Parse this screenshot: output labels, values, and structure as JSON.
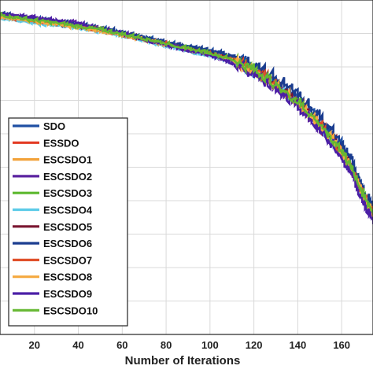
{
  "chart_data": {
    "type": "line",
    "title": "",
    "xlabel": "Number of Iterations",
    "ylabel": "",
    "xlim": [
      0,
      175
    ],
    "ylim": [
      0,
      1
    ],
    "xticks": [
      20,
      40,
      60,
      80,
      100,
      120,
      140,
      160
    ],
    "grid": true,
    "legend_position": "lower-left",
    "series": [
      {
        "name": "SDO",
        "color": "#1f4fa3",
        "points": [
          [
            0,
            0.965
          ],
          [
            10,
            0.952
          ],
          [
            20,
            0.943
          ],
          [
            30,
            0.935
          ],
          [
            40,
            0.926
          ],
          [
            50,
            0.915
          ],
          [
            60,
            0.902
          ],
          [
            70,
            0.888
          ],
          [
            80,
            0.872
          ],
          [
            90,
            0.86
          ],
          [
            100,
            0.848
          ],
          [
            110,
            0.83
          ],
          [
            120,
            0.8
          ],
          [
            130,
            0.76
          ],
          [
            140,
            0.705
          ],
          [
            150,
            0.64
          ],
          [
            160,
            0.56
          ],
          [
            165,
            0.5
          ],
          [
            170,
            0.42
          ],
          [
            175,
            0.37
          ]
        ]
      },
      {
        "name": "ESSDO",
        "color": "#e33b24",
        "points": [
          [
            0,
            0.958
          ],
          [
            10,
            0.95
          ],
          [
            20,
            0.94
          ],
          [
            30,
            0.932
          ],
          [
            40,
            0.922
          ],
          [
            50,
            0.912
          ],
          [
            60,
            0.898
          ],
          [
            70,
            0.884
          ],
          [
            80,
            0.87
          ],
          [
            90,
            0.855
          ],
          [
            100,
            0.842
          ],
          [
            110,
            0.822
          ],
          [
            120,
            0.79
          ],
          [
            130,
            0.748
          ],
          [
            140,
            0.692
          ],
          [
            150,
            0.628
          ],
          [
            160,
            0.548
          ],
          [
            165,
            0.49
          ],
          [
            170,
            0.412
          ],
          [
            175,
            0.36
          ]
        ]
      },
      {
        "name": "ESCSDO1",
        "color": "#f2a23a",
        "points": [
          [
            0,
            0.955
          ],
          [
            10,
            0.945
          ],
          [
            20,
            0.936
          ],
          [
            30,
            0.928
          ],
          [
            40,
            0.918
          ],
          [
            50,
            0.908
          ],
          [
            60,
            0.895
          ],
          [
            70,
            0.88
          ],
          [
            80,
            0.866
          ],
          [
            90,
            0.852
          ],
          [
            100,
            0.838
          ],
          [
            110,
            0.818
          ],
          [
            120,
            0.786
          ],
          [
            130,
            0.742
          ],
          [
            140,
            0.688
          ],
          [
            150,
            0.622
          ],
          [
            160,
            0.54
          ],
          [
            165,
            0.482
          ],
          [
            170,
            0.405
          ],
          [
            175,
            0.35
          ]
        ]
      },
      {
        "name": "ESCSDO2",
        "color": "#5b23a0",
        "points": [
          [
            0,
            0.962
          ],
          [
            10,
            0.956
          ],
          [
            20,
            0.947
          ],
          [
            30,
            0.939
          ],
          [
            40,
            0.93
          ],
          [
            50,
            0.914
          ],
          [
            60,
            0.9
          ],
          [
            70,
            0.882
          ],
          [
            80,
            0.864
          ],
          [
            90,
            0.85
          ],
          [
            100,
            0.835
          ],
          [
            110,
            0.812
          ],
          [
            120,
            0.778
          ],
          [
            130,
            0.735
          ],
          [
            140,
            0.68
          ],
          [
            150,
            0.612
          ],
          [
            160,
            0.53
          ],
          [
            165,
            0.47
          ],
          [
            170,
            0.395
          ],
          [
            175,
            0.33
          ]
        ]
      },
      {
        "name": "ESCSDO3",
        "color": "#5cb82e",
        "points": [
          [
            0,
            0.96
          ],
          [
            10,
            0.948
          ],
          [
            20,
            0.938
          ],
          [
            30,
            0.93
          ],
          [
            40,
            0.92
          ],
          [
            50,
            0.91
          ],
          [
            60,
            0.896
          ],
          [
            70,
            0.883
          ],
          [
            80,
            0.868
          ],
          [
            90,
            0.853
          ],
          [
            100,
            0.84
          ],
          [
            110,
            0.82
          ],
          [
            120,
            0.788
          ],
          [
            130,
            0.745
          ],
          [
            140,
            0.69
          ],
          [
            150,
            0.626
          ],
          [
            160,
            0.545
          ],
          [
            165,
            0.488
          ],
          [
            170,
            0.41
          ],
          [
            175,
            0.355
          ]
        ]
      },
      {
        "name": "ESCSDO4",
        "color": "#5ccbe8",
        "points": [
          [
            0,
            0.95
          ],
          [
            10,
            0.94
          ],
          [
            20,
            0.93
          ],
          [
            30,
            0.924
          ],
          [
            40,
            0.915
          ],
          [
            50,
            0.905
          ],
          [
            60,
            0.892
          ],
          [
            70,
            0.878
          ],
          [
            80,
            0.862
          ],
          [
            90,
            0.846
          ],
          [
            100,
            0.832
          ],
          [
            110,
            0.814
          ],
          [
            120,
            0.782
          ],
          [
            130,
            0.738
          ],
          [
            140,
            0.684
          ],
          [
            150,
            0.618
          ],
          [
            160,
            0.536
          ],
          [
            165,
            0.478
          ],
          [
            170,
            0.4
          ],
          [
            175,
            0.345
          ]
        ]
      },
      {
        "name": "ESCSDO5",
        "color": "#7a1630",
        "points": [
          [
            0,
            0.957
          ],
          [
            10,
            0.947
          ],
          [
            20,
            0.939
          ],
          [
            30,
            0.931
          ],
          [
            40,
            0.921
          ],
          [
            50,
            0.911
          ],
          [
            60,
            0.897
          ],
          [
            70,
            0.884
          ],
          [
            80,
            0.869
          ],
          [
            90,
            0.854
          ],
          [
            100,
            0.841
          ],
          [
            110,
            0.821
          ],
          [
            120,
            0.789
          ],
          [
            130,
            0.746
          ],
          [
            140,
            0.691
          ],
          [
            150,
            0.627
          ],
          [
            160,
            0.546
          ],
          [
            165,
            0.489
          ],
          [
            170,
            0.411
          ],
          [
            175,
            0.356
          ]
        ]
      },
      {
        "name": "ESCSDO6",
        "color": "#1a3c8f",
        "points": [
          [
            0,
            0.963
          ],
          [
            10,
            0.953
          ],
          [
            20,
            0.944
          ],
          [
            30,
            0.936
          ],
          [
            40,
            0.927
          ],
          [
            50,
            0.916
          ],
          [
            60,
            0.903
          ],
          [
            70,
            0.889
          ],
          [
            80,
            0.873
          ],
          [
            90,
            0.861
          ],
          [
            100,
            0.849
          ],
          [
            110,
            0.832
          ],
          [
            120,
            0.803
          ],
          [
            130,
            0.765
          ],
          [
            140,
            0.712
          ],
          [
            150,
            0.648
          ],
          [
            160,
            0.568
          ],
          [
            165,
            0.508
          ],
          [
            170,
            0.428
          ],
          [
            175,
            0.378
          ]
        ]
      },
      {
        "name": "ESCSDO7",
        "color": "#e0502a",
        "points": [
          [
            0,
            0.956
          ],
          [
            10,
            0.946
          ],
          [
            20,
            0.937
          ],
          [
            30,
            0.929
          ],
          [
            40,
            0.919
          ],
          [
            50,
            0.909
          ],
          [
            60,
            0.894
          ],
          [
            70,
            0.881
          ],
          [
            80,
            0.867
          ],
          [
            90,
            0.851
          ],
          [
            100,
            0.839
          ],
          [
            110,
            0.817
          ],
          [
            120,
            0.785
          ],
          [
            130,
            0.741
          ],
          [
            140,
            0.687
          ],
          [
            150,
            0.621
          ],
          [
            160,
            0.539
          ],
          [
            165,
            0.481
          ],
          [
            170,
            0.404
          ],
          [
            175,
            0.349
          ]
        ]
      },
      {
        "name": "ESCSDO8",
        "color": "#f5a93f",
        "points": [
          [
            0,
            0.954
          ],
          [
            10,
            0.944
          ],
          [
            20,
            0.935
          ],
          [
            30,
            0.927
          ],
          [
            40,
            0.917
          ],
          [
            50,
            0.907
          ],
          [
            60,
            0.893
          ],
          [
            70,
            0.879
          ],
          [
            80,
            0.865
          ],
          [
            90,
            0.85
          ],
          [
            100,
            0.837
          ],
          [
            110,
            0.816
          ],
          [
            120,
            0.784
          ],
          [
            130,
            0.74
          ],
          [
            140,
            0.686
          ],
          [
            150,
            0.62
          ],
          [
            160,
            0.538
          ],
          [
            165,
            0.48
          ],
          [
            170,
            0.402
          ],
          [
            175,
            0.348
          ]
        ]
      },
      {
        "name": "ESCSDO9",
        "color": "#4b1fa6",
        "points": [
          [
            0,
            0.961
          ],
          [
            10,
            0.955
          ],
          [
            20,
            0.946
          ],
          [
            30,
            0.938
          ],
          [
            40,
            0.929
          ],
          [
            50,
            0.913
          ],
          [
            60,
            0.899
          ],
          [
            70,
            0.881
          ],
          [
            80,
            0.863
          ],
          [
            90,
            0.849
          ],
          [
            100,
            0.834
          ],
          [
            110,
            0.81
          ],
          [
            120,
            0.775
          ],
          [
            130,
            0.73
          ],
          [
            140,
            0.676
          ],
          [
            150,
            0.608
          ],
          [
            160,
            0.525
          ],
          [
            165,
            0.465
          ],
          [
            170,
            0.39
          ],
          [
            175,
            0.325
          ]
        ]
      },
      {
        "name": "ESCSDO10",
        "color": "#66b832",
        "points": [
          [
            0,
            0.959
          ],
          [
            10,
            0.949
          ],
          [
            20,
            0.939
          ],
          [
            30,
            0.931
          ],
          [
            40,
            0.921
          ],
          [
            50,
            0.911
          ],
          [
            60,
            0.897
          ],
          [
            70,
            0.884
          ],
          [
            80,
            0.869
          ],
          [
            90,
            0.854
          ],
          [
            100,
            0.841
          ],
          [
            110,
            0.821
          ],
          [
            120,
            0.789
          ],
          [
            130,
            0.746
          ],
          [
            140,
            0.692
          ],
          [
            150,
            0.627
          ],
          [
            160,
            0.546
          ],
          [
            165,
            0.489
          ],
          [
            170,
            0.411
          ],
          [
            175,
            0.356
          ]
        ]
      }
    ]
  }
}
